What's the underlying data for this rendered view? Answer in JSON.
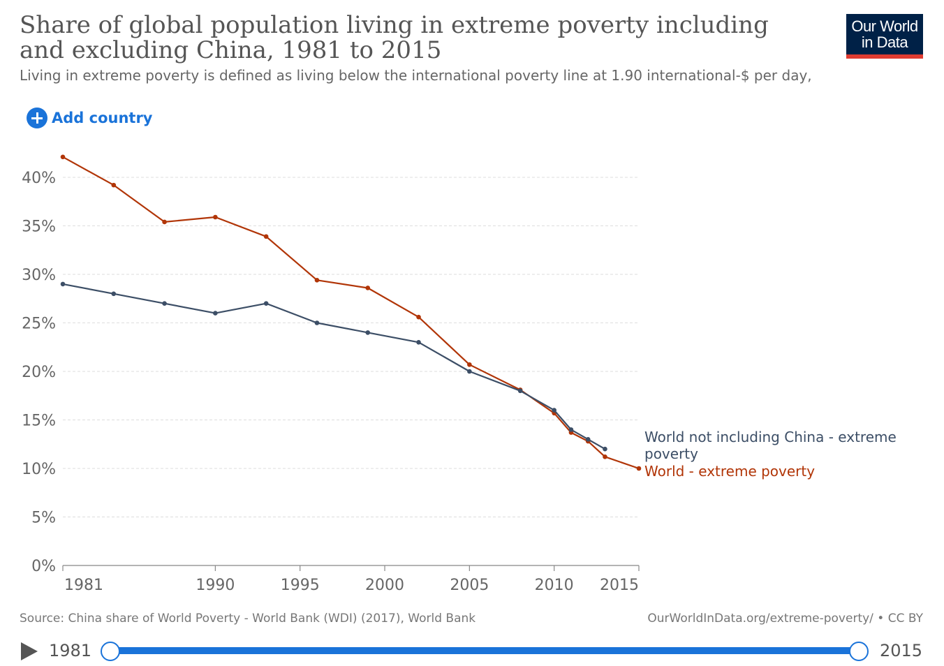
{
  "header": {
    "title": "Share of global population living in extreme poverty including and excluding China, 1981 to 2015",
    "subtitle": "Living in extreme poverty is defined as living below the international poverty line at 1.90 international-$ per day,",
    "logo_line1": "Our World",
    "logo_line2": "in Data"
  },
  "controls": {
    "add_country_label": "Add country"
  },
  "chart_data": {
    "type": "line",
    "xlim": [
      1981,
      2015
    ],
    "ylim": [
      0,
      0.4
    ],
    "grid": true,
    "x_ticks": [
      {
        "value": 1981,
        "label": "1981"
      },
      {
        "value": 1990,
        "label": "1990"
      },
      {
        "value": 1995,
        "label": "1995"
      },
      {
        "value": 2000,
        "label": "2000"
      },
      {
        "value": 2005,
        "label": "2005"
      },
      {
        "value": 2010,
        "label": "2010"
      },
      {
        "value": 2015,
        "label": "2015"
      }
    ],
    "y_ticks": [
      {
        "value": 0,
        "label": "0%"
      },
      {
        "value": 0.05,
        "label": "5%"
      },
      {
        "value": 0.1,
        "label": "10%"
      },
      {
        "value": 0.15,
        "label": "15%"
      },
      {
        "value": 0.2,
        "label": "20%"
      },
      {
        "value": 0.25,
        "label": "25%"
      },
      {
        "value": 0.3,
        "label": "30%"
      },
      {
        "value": 0.35,
        "label": "35%"
      },
      {
        "value": 0.4,
        "label": "40%"
      }
    ],
    "series": [
      {
        "name": "World - extreme poverty",
        "label_lines": [
          "World - extreme poverty"
        ],
        "color": "#b13507",
        "x": [
          1981,
          1984,
          1987,
          1990,
          1993,
          1996,
          1999,
          2002,
          2005,
          2008,
          2010,
          2011,
          2012,
          2013,
          2015
        ],
        "y": [
          0.421,
          0.392,
          0.354,
          0.359,
          0.339,
          0.294,
          0.286,
          0.256,
          0.207,
          0.181,
          0.157,
          0.137,
          0.128,
          0.112,
          0.1
        ]
      },
      {
        "name": "World not including China - extreme poverty",
        "label_lines": [
          "World not including China - extreme",
          "poverty"
        ],
        "color": "#3c4e66",
        "x": [
          1981,
          1984,
          1987,
          1990,
          1993,
          1996,
          1999,
          2002,
          2005,
          2008,
          2010,
          2011,
          2012,
          2013
        ],
        "y": [
          0.29,
          0.28,
          0.27,
          0.26,
          0.27,
          0.25,
          0.24,
          0.23,
          0.2,
          0.18,
          0.16,
          0.14,
          0.13,
          0.12
        ]
      }
    ]
  },
  "footer": {
    "source": "Source: China share of World Poverty - World Bank (WDI) (2017), World Bank",
    "url": "OurWorldInData.org/extreme-poverty/ • CC BY"
  },
  "timeline": {
    "start_label": "1981",
    "end_label": "2015",
    "start_year": 1981,
    "end_year": 2015,
    "selected_start": 1981,
    "selected_end": 2015
  }
}
